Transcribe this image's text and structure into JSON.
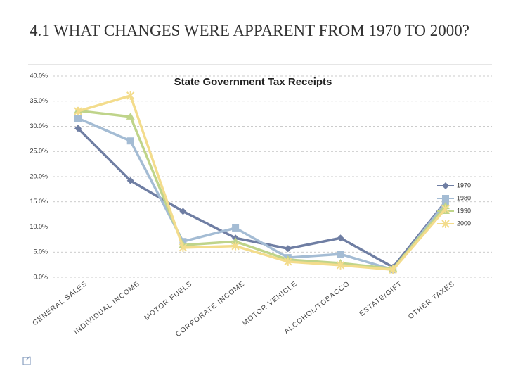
{
  "slide_title": "4.1 WHAT CHANGES WERE APPARENT FROM 1970 TO 2000?",
  "chart_data": {
    "type": "line",
    "title": "State Government Tax Receipts",
    "categories": [
      "GENERAL SALES",
      "INDIVIDUAL INCOME",
      "MOTOR FUELS",
      "CORPORATE INCOME",
      "MOTOR VEHICLE",
      "ALCOHOL/TOBACCO",
      "ESTATE/GIFT",
      "OTHER TAXES"
    ],
    "series": [
      {
        "name": "1970",
        "color": "#6f7ea3",
        "marker": "diamond",
        "values": [
          29.6,
          19.2,
          13.1,
          7.8,
          5.7,
          7.8,
          2.0,
          15.0
        ]
      },
      {
        "name": "1980",
        "color": "#a4bcd4",
        "marker": "square",
        "values": [
          31.6,
          27.1,
          7.1,
          9.8,
          3.9,
          4.6,
          1.5,
          14.8
        ]
      },
      {
        "name": "1990",
        "color": "#bfd48a",
        "marker": "triangle",
        "values": [
          33.1,
          31.9,
          6.4,
          7.1,
          3.5,
          2.8,
          1.7,
          14.1
        ]
      },
      {
        "name": "2000",
        "color": "#f3dc8c",
        "marker": "x",
        "values": [
          33.0,
          36.1,
          5.9,
          6.2,
          3.1,
          2.4,
          1.5,
          13.6
        ]
      }
    ],
    "ylim": [
      0,
      40
    ],
    "yticks": [
      {
        "value": 0,
        "label": "0.0%"
      },
      {
        "value": 5,
        "label": "5.0%"
      },
      {
        "value": 10,
        "label": "10.0%"
      },
      {
        "value": 15,
        "label": "15.0%"
      },
      {
        "value": 20,
        "label": "20.0%"
      },
      {
        "value": 25,
        "label": "25.0%"
      },
      {
        "value": 30,
        "label": "30.0%"
      },
      {
        "value": 35,
        "label": "35.0%"
      },
      {
        "value": 40,
        "label": "40.0%"
      }
    ],
    "grid": true,
    "legend": "right"
  }
}
